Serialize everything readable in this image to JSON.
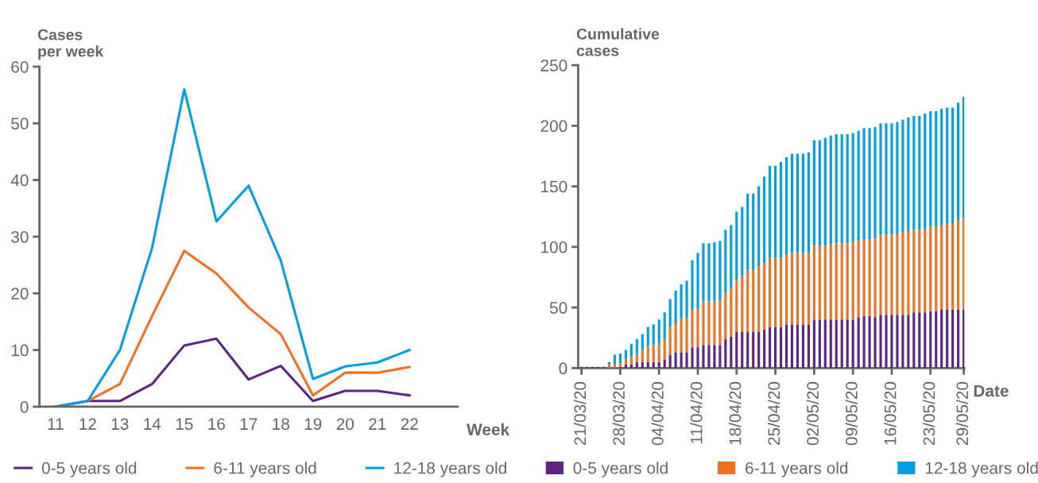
{
  "chart_data": [
    {
      "type": "line",
      "ylabel": "Cases\nper week",
      "xlabel": "Week",
      "x": [
        11,
        12,
        13,
        14,
        15,
        16,
        17,
        18,
        19,
        20,
        21,
        22
      ],
      "xlim": [
        10.5,
        23.5
      ],
      "xticks": [
        11,
        12,
        13,
        14,
        15,
        16,
        17,
        18,
        19,
        20,
        21,
        22
      ],
      "ylim": [
        0,
        60
      ],
      "yticks": [
        0,
        10,
        20,
        30,
        40,
        50,
        60
      ],
      "legend": "bottom",
      "grid": false,
      "marker": "none",
      "line_style": "solid",
      "series": [
        {
          "name": "0-5 years old",
          "color": "#5c2484",
          "values": [
            0,
            1,
            1,
            4,
            10.8,
            12,
            4.8,
            7.2,
            1,
            2.8,
            2.8,
            2
          ]
        },
        {
          "name": "6-11 years old",
          "color": "#f07022",
          "values": [
            0,
            1,
            4,
            16,
            27.5,
            23.5,
            17.5,
            12.8,
            2,
            6,
            6,
            7
          ]
        },
        {
          "name": "12-18 years old",
          "color": "#009fe3",
          "values": [
            0,
            1,
            10,
            28,
            56,
            32.7,
            39,
            25.8,
            4.9,
            7.1,
            7.8,
            10
          ]
        }
      ]
    },
    {
      "type": "bar",
      "stacked": true,
      "ylabel": "Cumulative\ncases",
      "xlabel": "Date",
      "ylim": [
        0,
        250
      ],
      "yticks": [
        0,
        50,
        100,
        150,
        200,
        250
      ],
      "legend": "bottom",
      "grid": false,
      "categories": [
        "21/03/20",
        null,
        null,
        null,
        null,
        null,
        null,
        "28/03/20",
        null,
        null,
        null,
        null,
        null,
        null,
        "04/04/20",
        null,
        null,
        null,
        null,
        null,
        null,
        "11/04/20",
        null,
        null,
        null,
        null,
        null,
        null,
        "18/04/20",
        null,
        null,
        null,
        null,
        null,
        null,
        "25/04/20",
        null,
        null,
        null,
        null,
        null,
        null,
        "02/05/20",
        null,
        null,
        null,
        null,
        null,
        null,
        "09/05/20",
        null,
        null,
        null,
        null,
        null,
        null,
        "16/05/20",
        null,
        null,
        null,
        null,
        null,
        null,
        "23/05/20",
        null,
        null,
        null,
        null,
        null,
        "29/05/20"
      ],
      "series": [
        {
          "name": "0-5 years old",
          "color": "#5c2484",
          "values": [
            1,
            1,
            1,
            1,
            1,
            0,
            0,
            1,
            3,
            3,
            5,
            5,
            5,
            5,
            5,
            7,
            11,
            13,
            13,
            13,
            17,
            17,
            19,
            19,
            19,
            19,
            24,
            26,
            30,
            30,
            30,
            30,
            30,
            32,
            34,
            34,
            34,
            36,
            36,
            36,
            36,
            36,
            40,
            40,
            40,
            40,
            40,
            40,
            40,
            40,
            42,
            43,
            43,
            42,
            44,
            44,
            44,
            44,
            44,
            44,
            46,
            46,
            46,
            47,
            47,
            48,
            48,
            48,
            48,
            48
          ]
        },
        {
          "name": "6-11 years old",
          "color": "#f07022",
          "values": [
            0,
            0,
            0,
            0,
            0,
            3,
            3,
            3,
            4,
            6,
            6,
            10,
            13,
            14,
            15,
            17,
            23,
            24,
            28,
            28,
            31,
            32,
            36,
            36,
            36,
            37,
            38,
            40,
            43,
            46,
            51,
            51,
            54,
            55,
            57,
            57,
            57,
            58,
            59,
            59,
            59,
            59,
            61,
            61,
            61,
            62,
            63,
            63,
            63,
            64,
            63,
            63,
            63,
            65,
            66,
            66,
            66,
            67,
            68,
            69,
            68,
            68,
            69,
            70,
            70,
            70,
            71,
            71,
            74,
            76
          ]
        },
        {
          "name": "12-18 years old",
          "color": "#009fe3",
          "values": [
            0,
            0,
            0,
            0,
            0,
            2,
            8,
            8,
            8,
            11,
            13,
            13,
            16,
            17,
            20,
            22,
            23,
            27,
            28,
            31,
            41,
            46,
            48,
            48,
            49,
            49,
            52,
            52,
            56,
            57,
            63,
            63,
            66,
            71,
            76,
            76,
            79,
            80,
            82,
            82,
            82,
            83,
            87,
            87,
            89,
            90,
            90,
            90,
            90,
            90,
            91,
            92,
            92,
            92,
            92,
            92,
            92,
            92,
            93,
            94,
            94,
            94,
            95,
            95,
            95,
            96,
            96,
            96,
            97,
            100
          ]
        }
      ]
    }
  ]
}
